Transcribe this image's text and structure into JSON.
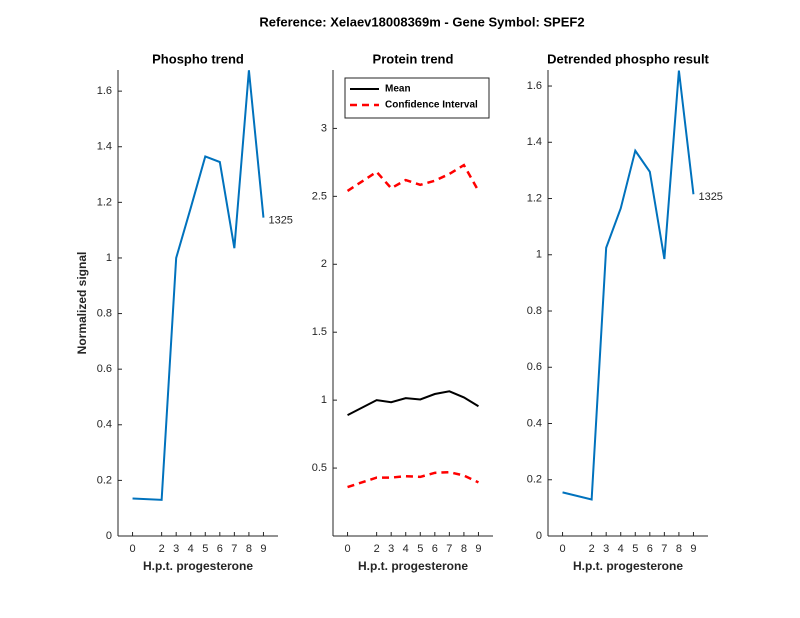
{
  "figure_title": "Reference:  Xelaev18008369m - Gene Symbol:  SPEF2",
  "chart_data": [
    {
      "type": "line",
      "title": "Phospho trend",
      "xlabel": "H.p.t. progesterone",
      "ylabel": "Normalized signal",
      "x": [
        0,
        2,
        3,
        4,
        5,
        6,
        7,
        8,
        9
      ],
      "xlim": [
        -1,
        10
      ],
      "xticks": [
        0,
        2,
        3,
        4,
        5,
        6,
        7,
        8,
        9
      ],
      "ylim": [
        0,
        1.676
      ],
      "yticks": [
        0,
        0.2,
        0.4,
        0.6,
        0.8,
        1,
        1.2,
        1.4,
        1.6
      ],
      "series": [
        {
          "color": "#0072bd",
          "values": [
            0.135,
            0.13,
            1.0,
            1.18,
            1.365,
            1.345,
            1.035,
            1.675,
            1.145
          ]
        }
      ],
      "annotation": "1325"
    },
    {
      "type": "line",
      "title": "Protein trend",
      "xlabel": "H.p.t. progesterone",
      "x": [
        0,
        2,
        3,
        4,
        5,
        6,
        7,
        8,
        9
      ],
      "xlim": [
        -1,
        10
      ],
      "xticks": [
        0,
        2,
        3,
        4,
        5,
        6,
        7,
        8,
        9
      ],
      "ylim": [
        0,
        3.43
      ],
      "yticks": [
        0.5,
        1,
        1.5,
        2,
        2.5,
        3
      ],
      "legend": "northwest",
      "series": [
        {
          "name": "Mean",
          "color": "#000000",
          "dashed": false,
          "values": [
            0.89,
            1.0,
            0.985,
            1.015,
            1.005,
            1.045,
            1.065,
            1.02,
            0.955
          ]
        },
        {
          "name": "Confidence Interval",
          "color": "#ff0000",
          "dashed": true,
          "values": [
            2.54,
            2.68,
            2.56,
            2.62,
            2.585,
            2.615,
            2.665,
            2.73,
            2.54
          ],
          "lower": [
            0.36,
            0.43,
            0.43,
            0.44,
            0.435,
            0.465,
            0.47,
            0.445,
            0.395
          ]
        }
      ]
    },
    {
      "type": "line",
      "title": "Detrended phospho result",
      "xlabel": "H.p.t. progesterone",
      "x": [
        0,
        2,
        3,
        4,
        5,
        6,
        7,
        8,
        9
      ],
      "xlim": [
        -1,
        10
      ],
      "xticks": [
        0,
        2,
        3,
        4,
        5,
        6,
        7,
        8,
        9
      ],
      "ylim": [
        0,
        1.657
      ],
      "yticks": [
        0,
        0.2,
        0.4,
        0.6,
        0.8,
        1,
        1.2,
        1.4,
        1.6
      ],
      "series": [
        {
          "color": "#0072bd",
          "values": [
            0.155,
            0.13,
            1.025,
            1.165,
            1.37,
            1.295,
            0.985,
            1.655,
            1.215
          ]
        }
      ],
      "annotation": "1325"
    }
  ]
}
